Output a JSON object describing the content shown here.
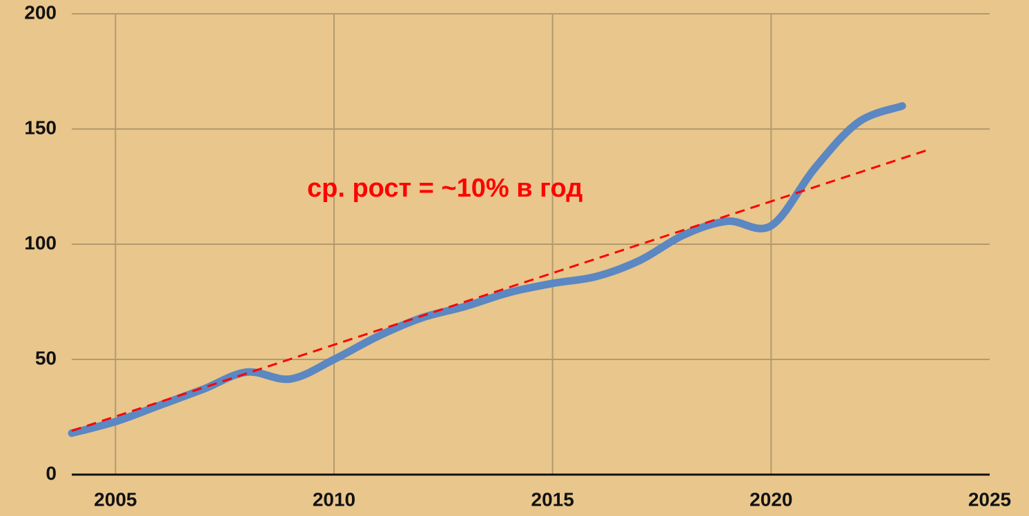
{
  "chart_data": {
    "type": "line",
    "annotation": "ср. рост = ~10% в год",
    "xlim": [
      2004,
      2025
    ],
    "xticks": [
      2005,
      2010,
      2015,
      2020,
      2025
    ],
    "ylim": [
      0,
      200
    ],
    "yticks": [
      0,
      50,
      100,
      150,
      200
    ],
    "grid": true,
    "series": [
      {
        "color": "#5b87c2",
        "style": "solid",
        "x": [
          2004,
          2005,
          2006,
          2007,
          2008,
          2009,
          2010,
          2011,
          2012,
          2013,
          2014,
          2015,
          2016,
          2017,
          2018,
          2019,
          2020,
          2021,
          2022,
          2023
        ],
        "values": [
          18,
          23,
          30,
          37,
          44.5,
          41.5,
          50,
          60,
          68,
          73,
          79,
          83,
          86,
          93,
          104,
          110,
          108,
          133,
          153,
          160
        ]
      },
      {
        "color": "#ff0000",
        "style": "dashed",
        "x": [
          2004,
          2023.6
        ],
        "values": [
          19,
          141
        ]
      }
    ]
  }
}
